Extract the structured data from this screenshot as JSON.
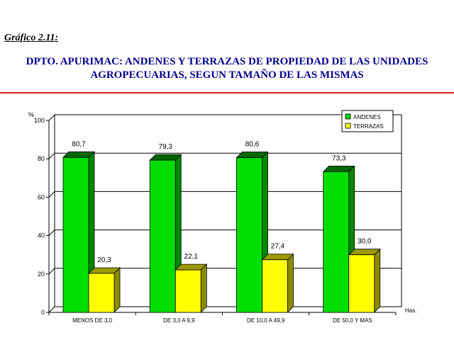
{
  "header": {
    "caption": "Gráfico 2.11:",
    "title_line1": "DPTO. APURIMAC: ANDENES Y TERRAZAS DE PROPIEDAD DE LAS UNIDADES",
    "title_line2": "AGROPECUARIAS, SEGUN TAMAÑO DE LAS MISMAS"
  },
  "colors": {
    "title": "#00008b",
    "rule": "#e02020",
    "andenes_front": "#00dd00",
    "andenes_side": "#008800",
    "andenes_top": "#006600",
    "terrazas_front": "#ffff00",
    "terrazas_side": "#8b8b00",
    "terrazas_top": "#9a9a00"
  },
  "chart_data": {
    "type": "bar",
    "title": "",
    "ylabel": "%",
    "xlabel": "Has.",
    "ylim": [
      0,
      100
    ],
    "yticks": [
      0,
      20,
      40,
      60,
      80,
      100
    ],
    "grid": true,
    "legend_position": "top-right",
    "categories": [
      "MENOS DE 3,0",
      "DE 3,0 A 9,9",
      "DE 10,0 A 49,9",
      "DE 50,0 Y MAS"
    ],
    "series": [
      {
        "name": "ANDENES",
        "values": [
          80.7,
          79.3,
          80.6,
          73.3
        ],
        "labels": [
          "80,7",
          "79,3",
          "80,6",
          "73,3"
        ]
      },
      {
        "name": "TERRAZAS",
        "values": [
          20.3,
          22.1,
          27.4,
          30.0
        ],
        "labels": [
          "20,3",
          "22,1",
          "27,4",
          "30,0"
        ]
      }
    ]
  }
}
